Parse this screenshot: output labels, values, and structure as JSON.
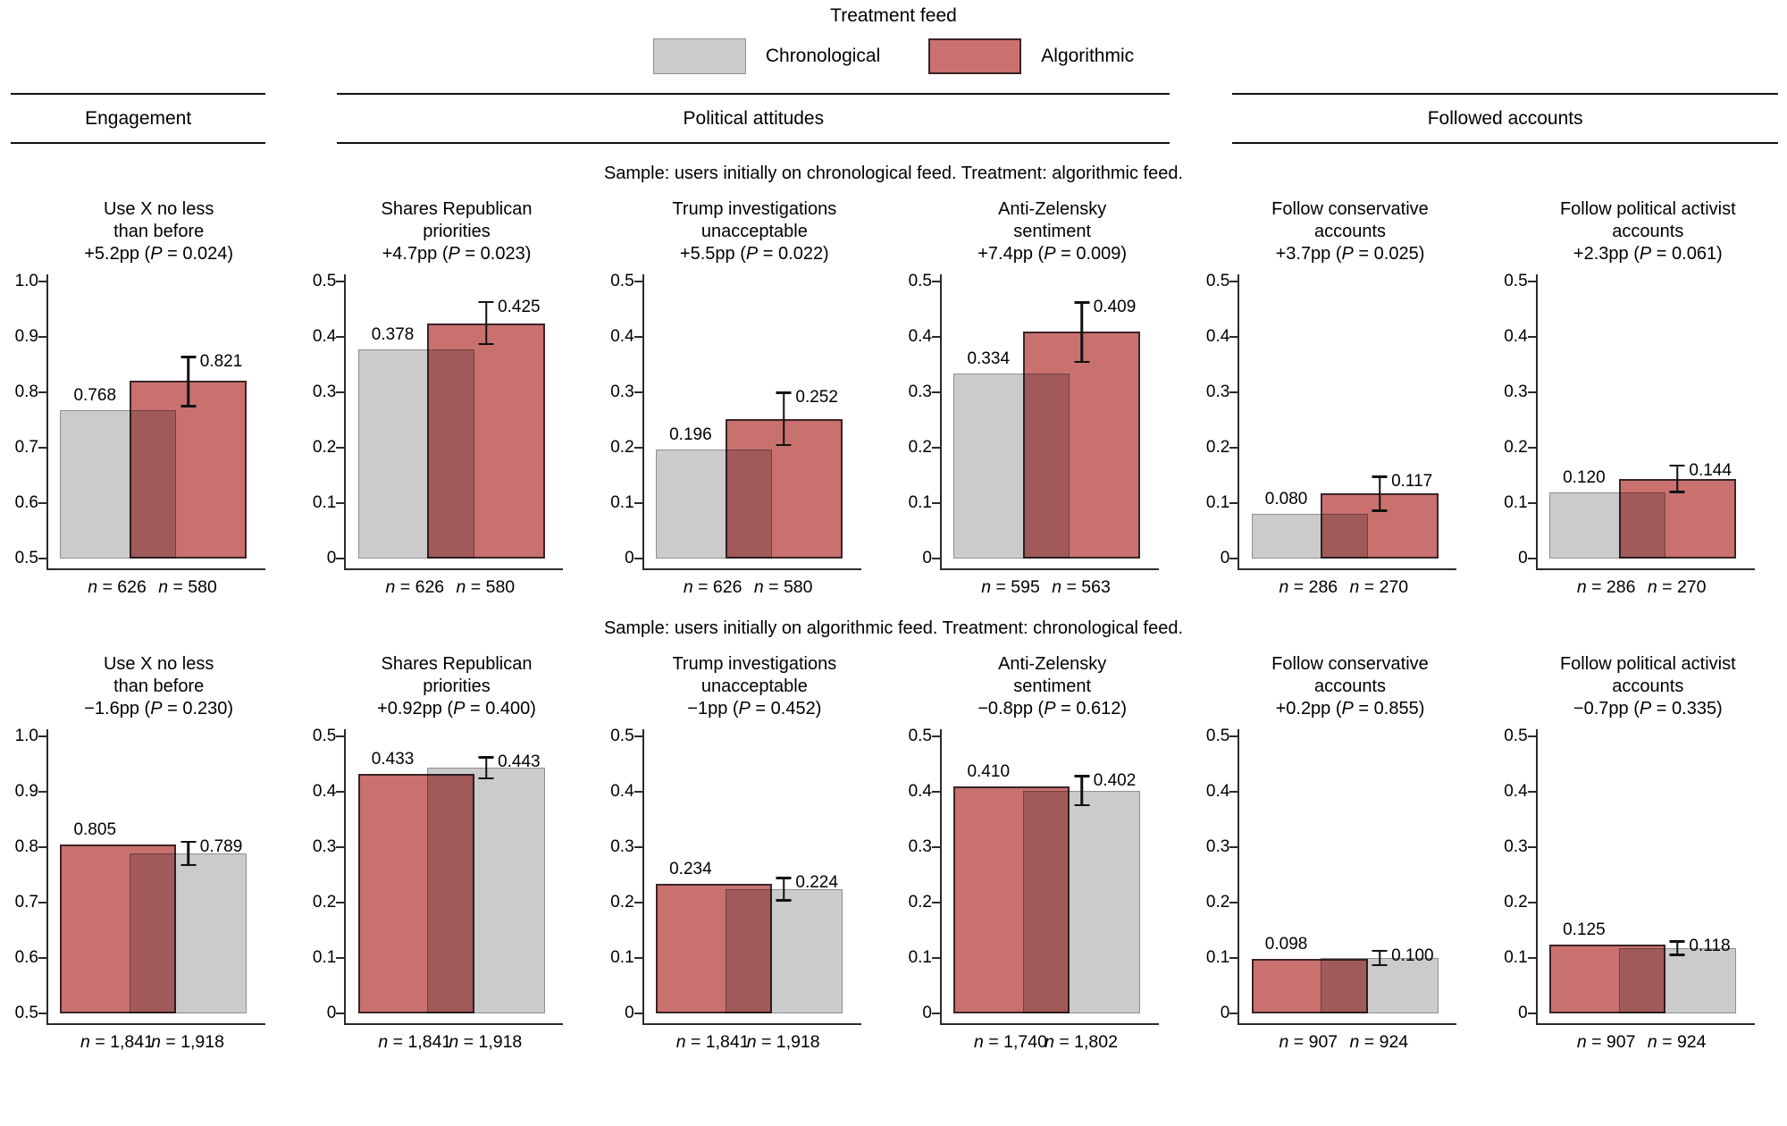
{
  "legend": {
    "title": "Treatment feed",
    "items": [
      {
        "label": "Chronological",
        "key": "chronological"
      },
      {
        "label": "Algorithmic",
        "key": "algorithmic"
      }
    ]
  },
  "sections": [
    {
      "label": "Engagement"
    },
    {
      "label": "Political attitudes"
    },
    {
      "label": "Followed accounts"
    }
  ],
  "colors": {
    "chronological_fill": "#cbcbcb",
    "chronological_border": "#8f8f8f",
    "algorithmic_fill": "#c9716f",
    "algorithmic_border": "#3b2425",
    "axis": "#2b2b2b",
    "text": "#000000"
  },
  "chart_data": {
    "type": "bar",
    "grid": false,
    "legend_position": "top",
    "rows": [
      {
        "caption": "Sample: users initially on chronological feed. Treatment: algorithmic feed.",
        "panels": [
          {
            "title_lines": [
              "Use X no less",
              "than before"
            ],
            "effect": "+5.2pp",
            "p": "0.024",
            "ylim": [
              0.5,
              1.0
            ],
            "yticks": [
              "1.0",
              "0.9",
              "0.8",
              "0.7",
              "0.6",
              "0.5"
            ],
            "bars": [
              {
                "group": "Chronological",
                "color": "chronological",
                "value": 0.768,
                "label": "0.768",
                "n": "626"
              },
              {
                "group": "Algorithmic",
                "color": "algorithmic",
                "value": 0.821,
                "label": "0.821",
                "n": "580",
                "error": [
                  0.773,
                  0.866
                ]
              }
            ]
          },
          {
            "title_lines": [
              "Shares Republican",
              "priorities"
            ],
            "effect": "+4.7pp",
            "p": "0.023",
            "ylim": [
              0,
              0.5
            ],
            "yticks": [
              "0.5",
              "0.4",
              "0.3",
              "0.2",
              "0.1",
              "0"
            ],
            "bars": [
              {
                "group": "Chronological",
                "color": "chronological",
                "value": 0.378,
                "label": "0.378",
                "n": "626"
              },
              {
                "group": "Algorithmic",
                "color": "algorithmic",
                "value": 0.425,
                "label": "0.425",
                "n": "580",
                "error": [
                  0.385,
                  0.465
                ]
              }
            ]
          },
          {
            "title_lines": [
              "Trump investigations",
              "unacceptable"
            ],
            "effect": "+5.5pp",
            "p": "0.022",
            "ylim": [
              0,
              0.5
            ],
            "yticks": [
              "0.5",
              "0.4",
              "0.3",
              "0.2",
              "0.1",
              "0"
            ],
            "bars": [
              {
                "group": "Chronological",
                "color": "chronological",
                "value": 0.196,
                "label": "0.196",
                "n": "626"
              },
              {
                "group": "Algorithmic",
                "color": "algorithmic",
                "value": 0.252,
                "label": "0.252",
                "n": "580",
                "error": [
                  0.203,
                  0.301
                ]
              }
            ]
          },
          {
            "title_lines": [
              "Anti-Zelensky",
              "sentiment"
            ],
            "effect": "+7.4pp",
            "p": "0.009",
            "ylim": [
              0,
              0.5
            ],
            "yticks": [
              "0.5",
              "0.4",
              "0.3",
              "0.2",
              "0.1",
              "0"
            ],
            "bars": [
              {
                "group": "Chronological",
                "color": "chronological",
                "value": 0.334,
                "label": "0.334",
                "n": "595"
              },
              {
                "group": "Algorithmic",
                "color": "algorithmic",
                "value": 0.409,
                "label": "0.409",
                "n": "563",
                "error": [
                  0.353,
                  0.464
                ]
              }
            ]
          },
          {
            "title_lines": [
              "Follow conservative",
              "accounts"
            ],
            "effect": "+3.7pp",
            "p": "0.025",
            "ylim": [
              0,
              0.5
            ],
            "yticks": [
              "0.5",
              "0.4",
              "0.3",
              "0.2",
              "0.1",
              "0"
            ],
            "bars": [
              {
                "group": "Chronological",
                "color": "chronological",
                "value": 0.08,
                "label": "0.080",
                "n": "286"
              },
              {
                "group": "Algorithmic",
                "color": "algorithmic",
                "value": 0.117,
                "label": "0.117",
                "n": "270",
                "error": [
                  0.084,
                  0.15
                ]
              }
            ]
          },
          {
            "title_lines": [
              "Follow political activist",
              "accounts"
            ],
            "effect": "+2.3pp",
            "p": "0.061",
            "ylim": [
              0,
              0.5
            ],
            "yticks": [
              "0.5",
              "0.4",
              "0.3",
              "0.2",
              "0.1",
              "0"
            ],
            "bars": [
              {
                "group": "Chronological",
                "color": "chronological",
                "value": 0.12,
                "label": "0.120",
                "n": "286"
              },
              {
                "group": "Algorithmic",
                "color": "algorithmic",
                "value": 0.144,
                "label": "0.144",
                "n": "270",
                "error": [
                  0.118,
                  0.17
                ]
              }
            ]
          }
        ]
      },
      {
        "caption": "Sample: users initially on algorithmic feed. Treatment: chronological feed.",
        "panels": [
          {
            "title_lines": [
              "Use X no less",
              "than before"
            ],
            "effect": "−1.6pp",
            "p": "0.230",
            "ylim": [
              0.5,
              1.0
            ],
            "yticks": [
              "1.0",
              "0.9",
              "0.8",
              "0.7",
              "0.6",
              "0.5"
            ],
            "bars": [
              {
                "group": "Algorithmic",
                "color": "algorithmic",
                "value": 0.805,
                "label": "0.805",
                "n": "1,841"
              },
              {
                "group": "Chronological",
                "color": "chronological",
                "value": 0.789,
                "label": "0.789",
                "n": "1,918",
                "error": [
                  0.766,
                  0.812
                ]
              }
            ]
          },
          {
            "title_lines": [
              "Shares Republican",
              "priorities"
            ],
            "effect": "+0.92pp",
            "p": "0.400",
            "ylim": [
              0,
              0.5
            ],
            "yticks": [
              "0.5",
              "0.4",
              "0.3",
              "0.2",
              "0.1",
              "0"
            ],
            "bars": [
              {
                "group": "Algorithmic",
                "color": "algorithmic",
                "value": 0.433,
                "label": "0.433",
                "n": "1,841"
              },
              {
                "group": "Chronological",
                "color": "chronological",
                "value": 0.443,
                "label": "0.443",
                "n": "1,918",
                "error": [
                  0.422,
                  0.464
                ]
              }
            ]
          },
          {
            "title_lines": [
              "Trump investigations",
              "unacceptable"
            ],
            "effect": "−1pp",
            "p": "0.452",
            "ylim": [
              0,
              0.5
            ],
            "yticks": [
              "0.5",
              "0.4",
              "0.3",
              "0.2",
              "0.1",
              "0"
            ],
            "bars": [
              {
                "group": "Algorithmic",
                "color": "algorithmic",
                "value": 0.234,
                "label": "0.234",
                "n": "1,841"
              },
              {
                "group": "Chronological",
                "color": "chronological",
                "value": 0.224,
                "label": "0.224",
                "n": "1,918",
                "error": [
                  0.202,
                  0.246
                ]
              }
            ]
          },
          {
            "title_lines": [
              "Anti-Zelensky",
              "sentiment"
            ],
            "effect": "−0.8pp",
            "p": "0.612",
            "ylim": [
              0,
              0.5
            ],
            "yticks": [
              "0.5",
              "0.4",
              "0.3",
              "0.2",
              "0.1",
              "0"
            ],
            "bars": [
              {
                "group": "Algorithmic",
                "color": "algorithmic",
                "value": 0.41,
                "label": "0.410",
                "n": "1,740"
              },
              {
                "group": "Chronological",
                "color": "chronological",
                "value": 0.402,
                "label": "0.402",
                "n": "1,802",
                "error": [
                  0.374,
                  0.43
                ]
              }
            ]
          },
          {
            "title_lines": [
              "Follow conservative",
              "accounts"
            ],
            "effect": "+0.2pp",
            "p": "0.855",
            "ylim": [
              0,
              0.5
            ],
            "yticks": [
              "0.5",
              "0.4",
              "0.3",
              "0.2",
              "0.1",
              "0"
            ],
            "bars": [
              {
                "group": "Algorithmic",
                "color": "algorithmic",
                "value": 0.098,
                "label": "0.098",
                "n": "907"
              },
              {
                "group": "Chronological",
                "color": "chronological",
                "value": 0.1,
                "label": "0.100",
                "n": "924",
                "error": [
                  0.085,
                  0.115
                ]
              }
            ]
          },
          {
            "title_lines": [
              "Follow political activist",
              "accounts"
            ],
            "effect": "−0.7pp",
            "p": "0.335",
            "ylim": [
              0,
              0.5
            ],
            "yticks": [
              "0.5",
              "0.4",
              "0.3",
              "0.2",
              "0.1",
              "0"
            ],
            "bars": [
              {
                "group": "Algorithmic",
                "color": "algorithmic",
                "value": 0.125,
                "label": "0.125",
                "n": "907"
              },
              {
                "group": "Chronological",
                "color": "chronological",
                "value": 0.118,
                "label": "0.118",
                "n": "924",
                "error": [
                  0.104,
                  0.132
                ]
              }
            ]
          }
        ]
      }
    ]
  }
}
